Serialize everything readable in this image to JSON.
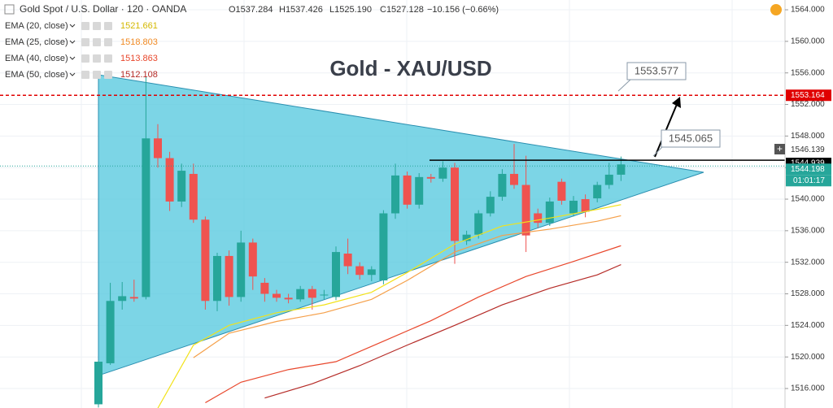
{
  "header": {
    "symbol": "Gold Spot / U.S. Dollar · 120 · OANDA",
    "open": "O1537.284",
    "high": "H1537.426",
    "low": "L1525.190",
    "close": "C1527.128",
    "change": "−10.156 (−0.66%)"
  },
  "chart_data": {
    "type": "candlestick",
    "title": "Gold - XAU/USD",
    "ylim": [
      1513.53,
      1565.24
    ],
    "yticks": [
      {
        "value": 1516,
        "label": "1516.000"
      },
      {
        "value": 1520,
        "label": "1520.000"
      },
      {
        "value": 1524,
        "label": "1524.000"
      },
      {
        "value": 1528,
        "label": "1528.000"
      },
      {
        "value": 1532,
        "label": "1532.000"
      },
      {
        "value": 1536,
        "label": "1536.000"
      },
      {
        "value": 1540,
        "label": "1540.000"
      },
      {
        "value": 1544,
        "label": "1544.000"
      },
      {
        "value": 1548,
        "label": "1548.000"
      },
      {
        "value": 1552,
        "label": "1552.000"
      },
      {
        "value": 1556,
        "label": "1556.000"
      },
      {
        "value": 1560,
        "label": "1560.000"
      },
      {
        "value": 1564,
        "label": "1564.000"
      }
    ],
    "grid": true,
    "up_color": "#26a69a",
    "down_color": "#ef5350",
    "open": [
      1514,
      1519.2,
      1527.1,
      1527.6,
      1527.6,
      1547.7,
      1545.2,
      1539.7,
      1543.2,
      1537.4,
      1527.1,
      1532.8,
      1527.6,
      1534.5,
      1529.4,
      1528,
      1527.5,
      1527.3,
      1528.6,
      1527.8,
      1527.6,
      1533.1,
      1531.5,
      1530.4,
      1529.7,
      1538.2,
      1543,
      1539.3,
      1542.8,
      1542.6,
      1544,
      1534.7,
      1535.5,
      1538.2,
      1540.3,
      1543.2,
      1541.8,
      1538.2,
      1537,
      1542.2,
      1538.2,
      1540,
      1540.1,
      1541.8,
      1543.1
    ],
    "high": [
      1519.6,
      1529.4,
      1529.5,
      1529.8,
      1555.5,
      1549.5,
      1546,
      1544.5,
      1544.5,
      1537.8,
      1533.2,
      1533.5,
      1536,
      1535,
      1530,
      1528.5,
      1528,
      1529,
      1529,
      1528.5,
      1534,
      1535,
      1532,
      1531.5,
      1538.6,
      1544.5,
      1543.5,
      1543.3,
      1543.2,
      1544.8,
      1544.6,
      1536,
      1538.6,
      1541,
      1543.8,
      1547,
      1545.5,
      1538.8,
      1540.2,
      1542.6,
      1540.4,
      1540.6,
      1542.2,
      1544.6,
      1545.4
    ],
    "low": [
      1513.6,
      1519,
      1526,
      1527,
      1527.3,
      1544,
      1538.5,
      1539,
      1537,
      1526,
      1525.8,
      1526.5,
      1527,
      1528.5,
      1527,
      1527,
      1526.8,
      1527,
      1526,
      1527.3,
      1527.2,
      1530.5,
      1529.8,
      1529.6,
      1529.2,
      1537.5,
      1538.8,
      1538.8,
      1542.1,
      1542.2,
      1531.8,
      1534.2,
      1535,
      1537.8,
      1539.8,
      1541.3,
      1533.3,
      1536.4,
      1536.6,
      1539.3,
      1537.8,
      1537.7,
      1539.6,
      1541.3,
      1542.3
    ],
    "close": [
      1519.4,
      1527.1,
      1527.7,
      1527.4,
      1547.7,
      1545.2,
      1539.7,
      1543.6,
      1537.4,
      1527.1,
      1532.8,
      1527.6,
      1534.5,
      1530.2,
      1528,
      1527.5,
      1527.3,
      1528.6,
      1527.5,
      1527.9,
      1533.3,
      1531.5,
      1530.4,
      1531.1,
      1538.2,
      1543,
      1539.3,
      1542.8,
      1542.6,
      1544,
      1534.7,
      1535.5,
      1538.2,
      1540.3,
      1543.2,
      1541.8,
      1535.4,
      1537,
      1539.7,
      1539.8,
      1539.8,
      1538.4,
      1541.8,
      1543.1,
      1544.4
    ],
    "series": [
      {
        "name": "EMA (20, close)",
        "legend_value": 1521.661,
        "color": "#f2e21a",
        "text_color": "#d4b800",
        "x": [
          5,
          8,
          11,
          15,
          19,
          23,
          26,
          30,
          34,
          38,
          42,
          44
        ],
        "values": [
          1513.5,
          1521.5,
          1524,
          1525.6,
          1526.6,
          1528.2,
          1530.7,
          1534.3,
          1536.6,
          1537.6,
          1538.7,
          1539.3
        ]
      },
      {
        "name": "EMA (25, close)",
        "legend_value": 1518.803,
        "color": "#f5a04a",
        "text_color": "#f08a24",
        "x": [
          8,
          11,
          15,
          19,
          23,
          26,
          30,
          34,
          38,
          42,
          44
        ],
        "values": [
          1519.9,
          1523,
          1524.5,
          1525.6,
          1527.3,
          1529.7,
          1533.3,
          1535.4,
          1536.2,
          1537.2,
          1537.9
        ]
      },
      {
        "name": "EMA (40, close)",
        "legend_value": 1513.863,
        "color": "#e8472c",
        "text_color": "#e8472c",
        "x": [
          9,
          12,
          16,
          20,
          24,
          28,
          32,
          36,
          40,
          44
        ],
        "values": [
          1514.2,
          1516.8,
          1518.4,
          1519.4,
          1522,
          1524.6,
          1527.6,
          1530.2,
          1532.1,
          1534.1
        ]
      },
      {
        "name": "EMA (50, close)",
        "legend_value": 1512.108,
        "color": "#b52b27",
        "text_color": "#b52b27",
        "x": [
          14,
          18,
          22,
          26,
          30,
          34,
          38,
          42,
          44
        ],
        "values": [
          1514.8,
          1516.6,
          1518.9,
          1521.5,
          1524,
          1526.6,
          1528.7,
          1530.4,
          1531.7
        ]
      }
    ],
    "price_lines": [
      {
        "value": 1553.164,
        "color": "#e00000"
      },
      {
        "value": 1546.139,
        "color": "#ffffff"
      },
      {
        "value": 1544.939,
        "color": "#000000"
      },
      {
        "value": 1544.198,
        "color": "#26a69a"
      }
    ],
    "annotations": [
      1553.577,
      1545.065
    ],
    "countdown": "01:01:17"
  }
}
